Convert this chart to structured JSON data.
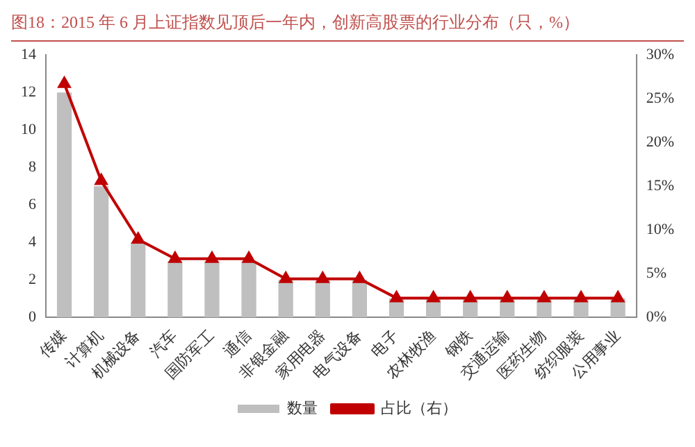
{
  "chart_data": {
    "type": "bar",
    "title": "图18：2015 年 6 月上证指数见顶后一年内，创新高股票的行业分布（只，%）",
    "categories": [
      "传媒",
      "计算机",
      "机械设备",
      "汽车",
      "国防军工",
      "通信",
      "非银金融",
      "家用电器",
      "电气设备",
      "电子",
      "农林牧渔",
      "钢铁",
      "交通运输",
      "医药生物",
      "纺织服装",
      "公用事业"
    ],
    "series": [
      {
        "name": "数量",
        "color": "#bfbfbf",
        "values": [
          12,
          7,
          4,
          3,
          3,
          3,
          2,
          2,
          2,
          1,
          1,
          1,
          1,
          1,
          1,
          1
        ]
      },
      {
        "name": "占比（右）",
        "type": "line",
        "axis": "y2",
        "color": "#c00000",
        "marker": "triangle",
        "values": [
          26.7,
          15.6,
          8.9,
          6.7,
          6.7,
          6.7,
          4.4,
          4.4,
          4.4,
          2.2,
          2.2,
          2.2,
          2.2,
          2.2,
          2.2,
          2.2
        ]
      }
    ],
    "ylim": [
      0,
      14
    ],
    "yticks": [
      0,
      2,
      4,
      6,
      8,
      10,
      12,
      14
    ],
    "y2lim": [
      0,
      30
    ],
    "y2ticks": [
      {
        "value": 0,
        "label": "0%"
      },
      {
        "value": 5,
        "label": "5%"
      },
      {
        "value": 10,
        "label": "10%"
      },
      {
        "value": 15,
        "label": "15%"
      },
      {
        "value": 20,
        "label": "20%"
      },
      {
        "value": 25,
        "label": "25%"
      },
      {
        "value": 30,
        "label": "30%"
      }
    ],
    "grid": false,
    "legend": "bottom"
  }
}
